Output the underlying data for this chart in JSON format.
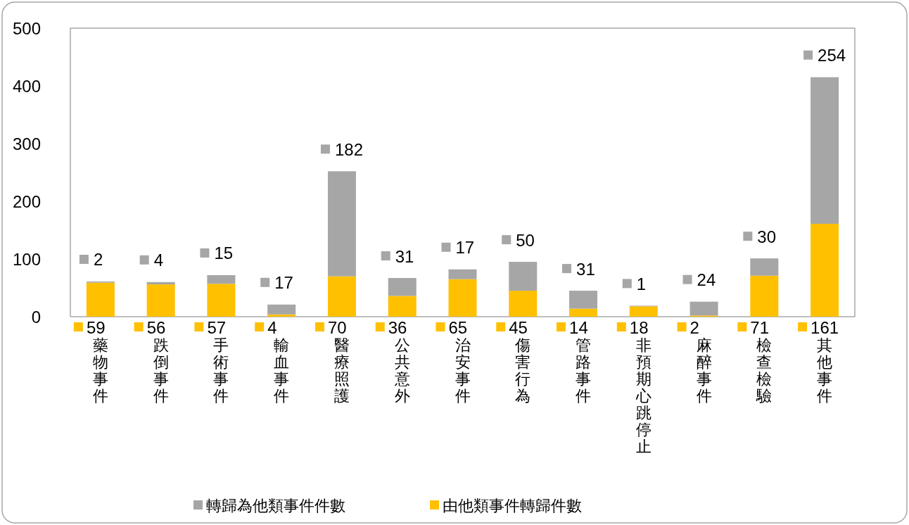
{
  "chart_data": {
    "type": "bar",
    "stacked": true,
    "categories": [
      "藥物事件",
      "跌倒事件",
      "手術事件",
      "輸血事件",
      "醫療照護",
      "公共意外",
      "治安事件",
      "傷害行為",
      "管路事件",
      "非預期心跳停止",
      "麻醉事件",
      "檢查檢驗",
      "其他事件"
    ],
    "series": [
      {
        "name": "由他類事件轉歸件數",
        "color": "#ffc000",
        "values": [
          59,
          56,
          57,
          4,
          70,
          36,
          65,
          45,
          14,
          18,
          2,
          71,
          161
        ]
      },
      {
        "name": "轉歸為他類事件件數",
        "color": "#a6a6a6",
        "values": [
          2,
          4,
          15,
          17,
          182,
          31,
          17,
          50,
          31,
          1,
          24,
          30,
          254
        ]
      }
    ],
    "ylim": [
      0,
      500
    ],
    "yticks": [
      0,
      100,
      200,
      300,
      400,
      500
    ],
    "data_labels": true,
    "legend": "bottom",
    "grid": false
  }
}
